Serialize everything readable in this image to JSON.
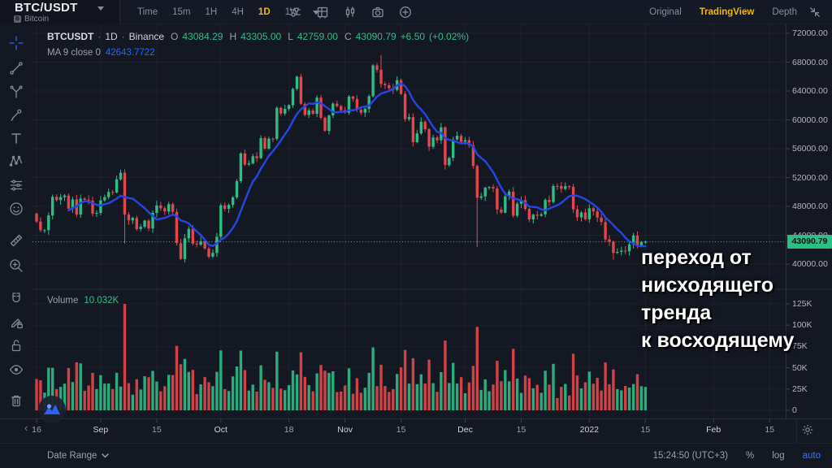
{
  "header": {
    "symbol": "BTC/USDT",
    "asset_name": "Bitcoin",
    "asset_icon_letter": "B",
    "intervals": [
      "Time",
      "15m",
      "1H",
      "4H",
      "1D",
      "1W"
    ],
    "active_interval": "1D",
    "view_tabs": {
      "original": "Original",
      "tradingview": "TradingView",
      "depth": "Depth"
    },
    "active_view": "TradingView",
    "icons": [
      "settings-sliders",
      "layout-grid",
      "chart-style-candles",
      "screenshot-camera",
      "plus-circle",
      "collapse-arrows"
    ]
  },
  "legend": {
    "symbol": "BTCUSDT",
    "sep": "·",
    "interval": "1D",
    "exchange": "Binance",
    "o_label": "O",
    "o": "43084.29",
    "h_label": "H",
    "h": "43305.00",
    "l_label": "L",
    "l": "42759.00",
    "c_label": "C",
    "c": "43090.79",
    "change": "+6.50",
    "change_pct": "(+0.02%)",
    "ma_label": "MA 9 close 0",
    "ma_value": "42643.7722"
  },
  "volume_pane": {
    "label": "Volume",
    "value": "10.032K"
  },
  "price_badge": "43090.79",
  "annotation": {
    "lines": [
      "переход от",
      "нисходящего",
      "тренда",
      "к восходящему"
    ]
  },
  "footer": {
    "date_range": "Date Range",
    "clock": "15:24:50 (UTC+3)",
    "percent": "%",
    "log": "log",
    "auto": "auto"
  },
  "colors": {
    "up": "#2EBD85",
    "down": "#E2474D",
    "ma_line": "#2446E6",
    "accent": "#F0B90B",
    "grid": "rgba(255,255,255,0.045)",
    "separator": "#2a2e39",
    "crosshair_tool": "#2962FF"
  },
  "chart_data": {
    "type": "candlestick+volume",
    "title": "BTCUSDT · 1D · Binance",
    "x_start": "Aug 16 2021",
    "ma_period": 9,
    "current_price": 43090.79,
    "first_open": 47010,
    "closes": [
      45900,
      44700,
      44700,
      46750,
      49320,
      48870,
      49290,
      49500,
      47700,
      48970,
      46860,
      49080,
      48900,
      48800,
      47000,
      47100,
      48830,
      49290,
      50000,
      49920,
      51750,
      52670,
      46860,
      46060,
      46400,
      44850,
      45170,
      46030,
      44950,
      47100,
      48140,
      47740,
      47300,
      48300,
      47250,
      42900,
      40700,
      43570,
      44890,
      42840,
      42700,
      43170,
      42160,
      41030,
      41550,
      43790,
      48150,
      47670,
      48200,
      49250,
      51500,
      55350,
      53800,
      53960,
      54950,
      54690,
      57480,
      56000,
      57370,
      57350,
      61670,
      60880,
      61530,
      62030,
      64280,
      65990,
      62210,
      60690,
      61300,
      60850,
      63080,
      60280,
      58470,
      60600,
      62250,
      61890,
      61320,
      61000,
      63220,
      62900,
      61400,
      61000,
      61530,
      63280,
      67550,
      66950,
      64980,
      64800,
      64380,
      64150,
      65500,
      63600,
      60100,
      60370,
      56900,
      58120,
      59730,
      58700,
      56280,
      57560,
      57160,
      58960,
      53730,
      54720,
      57270,
      57780,
      56950,
      57180,
      56480,
      53600,
      49200,
      49390,
      50580,
      50680,
      50480,
      47550,
      47140,
      49390,
      50050,
      46700,
      48370,
      48870,
      47650,
      46180,
      46850,
      46700,
      46900,
      48900,
      48600,
      50830,
      50820,
      50430,
      50800,
      50700,
      47590,
      46470,
      47150,
      46210,
      47740,
      47300,
      46440,
      45830,
      43420,
      43100,
      41550,
      41690,
      41860,
      41780,
      42740,
      43950,
      42580,
      43084,
      43090.79
    ],
    "overrides": {
      "22": {
        "low": 42830,
        "vol": 125000
      },
      "36": {
        "low": 40540
      },
      "86": {
        "high": 69000
      },
      "110": {
        "low": 42333,
        "vol": 98000
      },
      "144": {
        "low": 40610
      }
    },
    "price_axis": {
      "min": 40000,
      "max": 72000,
      "step": 4000,
      "ticks": [
        {
          "label": "72000.00",
          "v": 72000
        },
        {
          "label": "68000.00",
          "v": 68000
        },
        {
          "label": "64000.00",
          "v": 64000
        },
        {
          "label": "60000.00",
          "v": 60000
        },
        {
          "label": "56000.00",
          "v": 56000
        },
        {
          "label": "52000.00",
          "v": 52000
        },
        {
          "label": "48000.00",
          "v": 48000
        },
        {
          "label": "44000.00",
          "v": 44000
        },
        {
          "label": "40000.00",
          "v": 40000
        }
      ]
    },
    "volume_axis": {
      "max": 125000,
      "ticks": [
        {
          "label": "125K",
          "v": 125000
        },
        {
          "label": "100K",
          "v": 100000
        },
        {
          "label": "75K",
          "v": 75000
        },
        {
          "label": "50K",
          "v": 50000
        },
        {
          "label": "25K",
          "v": 25000
        },
        {
          "label": "0",
          "v": 0
        }
      ]
    },
    "time_axis": {
      "ticks": [
        {
          "label": "16",
          "d": 0
        },
        {
          "label": "Sep",
          "d": 16,
          "major": true
        },
        {
          "label": "15",
          "d": 30
        },
        {
          "label": "Oct",
          "d": 46,
          "major": true
        },
        {
          "label": "18",
          "d": 63
        },
        {
          "label": "Nov",
          "d": 77,
          "major": true
        },
        {
          "label": "15",
          "d": 91
        },
        {
          "label": "Dec",
          "d": 107,
          "major": true
        },
        {
          "label": "15",
          "d": 121
        },
        {
          "label": "2022",
          "d": 138,
          "major": true
        },
        {
          "label": "15",
          "d": 152
        },
        {
          "label": "Feb",
          "d": 169,
          "major": true
        },
        {
          "label": "15",
          "d": 183
        }
      ]
    }
  }
}
